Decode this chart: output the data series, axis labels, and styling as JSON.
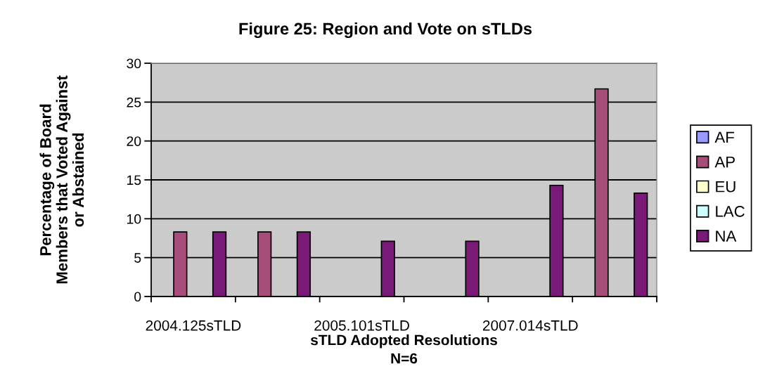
{
  "chart_data": {
    "type": "bar",
    "title": "Figure 25: Region and Vote on sTLDs",
    "xlabel": "sTLD Adopted Resolutions\nN=6",
    "ylabel": "Percentage of Board\nMembers that Voted Against\nor Abstained",
    "categories": [
      "2004.125sTLD",
      null,
      "2005.101sTLD",
      null,
      "2007.014sTLD",
      null
    ],
    "series": [
      {
        "name": "AF",
        "color": "#9999ff",
        "values": [
          null,
          null,
          null,
          null,
          null,
          null
        ]
      },
      {
        "name": "AP",
        "color": "#a64d79",
        "values": [
          8.3,
          8.3,
          null,
          null,
          null,
          26.7
        ]
      },
      {
        "name": "EU",
        "color": "#ffffcc",
        "values": [
          null,
          null,
          null,
          null,
          null,
          null
        ]
      },
      {
        "name": "LAC",
        "color": "#ccffff",
        "values": [
          null,
          null,
          null,
          null,
          null,
          null
        ]
      },
      {
        "name": "NA",
        "color": "#7a1a78",
        "values": [
          8.3,
          8.3,
          7.1,
          7.1,
          14.3,
          13.3
        ]
      }
    ],
    "ylim": [
      0,
      30
    ],
    "yticks": [
      0,
      5,
      10,
      15,
      20,
      25,
      30
    ],
    "grid": "y",
    "legend": "right"
  }
}
